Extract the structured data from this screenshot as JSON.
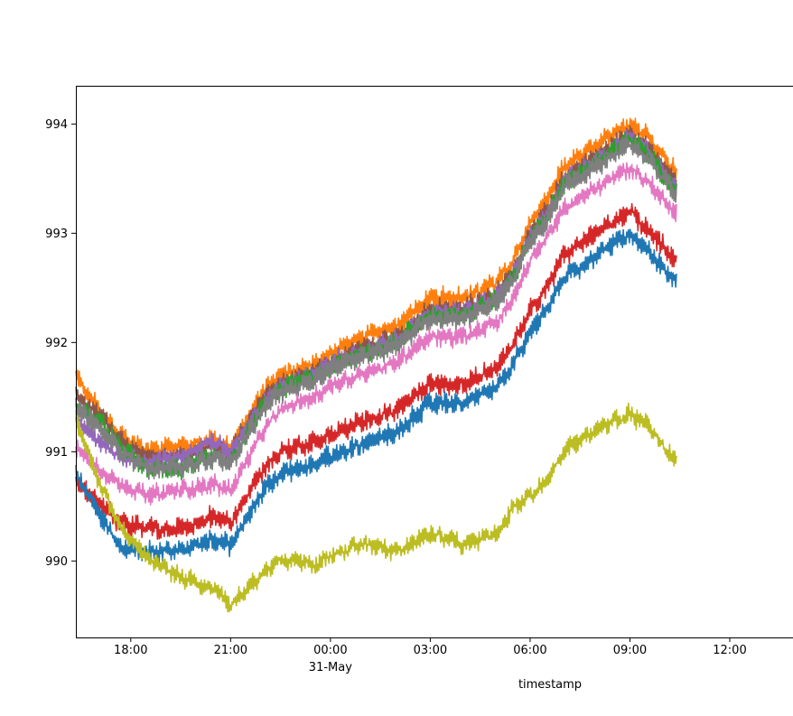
{
  "chart_data": {
    "type": "line",
    "title": "",
    "xlabel": "timestamp",
    "ylabel": "",
    "x_unit": "hours relative to 31-May 00:00",
    "xlim": [
      -7.65,
      13.9
    ],
    "ylim": [
      989.3,
      994.35
    ],
    "x_ticks": [
      {
        "value": -6,
        "label": "18:00",
        "sublabel": ""
      },
      {
        "value": -3,
        "label": "21:00",
        "sublabel": ""
      },
      {
        "value": 0,
        "label": "00:00",
        "sublabel": "31-May"
      },
      {
        "value": 3,
        "label": "03:00",
        "sublabel": ""
      },
      {
        "value": 6,
        "label": "06:00",
        "sublabel": ""
      },
      {
        "value": 9,
        "label": "09:00",
        "sublabel": ""
      },
      {
        "value": 12,
        "label": "12:00",
        "sublabel": ""
      }
    ],
    "y_ticks": [
      {
        "value": 990,
        "label": "990"
      },
      {
        "value": 991,
        "label": "991"
      },
      {
        "value": 992,
        "label": "992"
      },
      {
        "value": 993,
        "label": "993"
      },
      {
        "value": 994,
        "label": "994"
      }
    ],
    "grid": false,
    "legend": "none",
    "series": [
      {
        "color": "#ff7f0e",
        "band": 0.14,
        "x": [
          -7.65,
          -7,
          -6.3,
          -5.5,
          -4.5,
          -3.5,
          -3,
          -2,
          -1.5,
          -1,
          -0.5,
          0,
          1,
          2,
          3,
          4,
          5,
          5.5,
          6,
          6.5,
          7,
          8,
          9,
          9.5,
          10.4
        ],
        "y": [
          991.7,
          991.4,
          991.15,
          991.0,
          991.05,
          991.1,
          991.05,
          991.55,
          991.7,
          991.75,
          991.8,
          991.9,
          992.05,
          992.15,
          992.4,
          992.4,
          992.55,
          992.75,
          993.1,
          993.3,
          993.6,
          993.8,
          994.0,
          993.9,
          993.55
        ]
      },
      {
        "color": "#8c564b",
        "band": 0.14,
        "x": [
          -7.65,
          -7,
          -6.3,
          -5.5,
          -4.5,
          -3.5,
          -3,
          -2,
          -1.5,
          -1,
          -0.5,
          0,
          1,
          2,
          3,
          4,
          5,
          5.5,
          6,
          6.5,
          7,
          8,
          9,
          9.5,
          10.4
        ],
        "y": [
          991.5,
          991.35,
          991.1,
          990.95,
          990.95,
          991.05,
          991.0,
          991.5,
          991.62,
          991.68,
          991.72,
          991.82,
          991.95,
          992.05,
          992.3,
          992.3,
          992.45,
          992.65,
          993.0,
          993.2,
          993.5,
          993.7,
          993.92,
          993.8,
          993.45
        ]
      },
      {
        "color": "#9467bd",
        "band": 0.12,
        "x": [
          -7.65,
          -7,
          -6.3,
          -5.5,
          -4.5,
          -3.5,
          -3,
          -2,
          -1.5,
          -1,
          -0.5,
          0,
          1,
          2,
          3,
          4,
          5,
          5.5,
          6,
          6.5,
          7,
          8,
          9,
          9.5,
          10.4
        ],
        "y": [
          991.3,
          991.1,
          990.95,
          990.9,
          990.95,
          991.1,
          991.0,
          991.45,
          991.6,
          991.65,
          991.7,
          991.8,
          991.92,
          992.02,
          992.28,
          992.28,
          992.42,
          992.62,
          992.97,
          993.17,
          993.47,
          993.67,
          993.88,
          993.76,
          993.4
        ]
      },
      {
        "color": "#2ca02c",
        "band": 0.12,
        "x": [
          -7.65,
          -7,
          -6.3,
          -5.5,
          -4.5,
          -3.5,
          -3,
          -2,
          -1.5,
          -1,
          -0.5,
          0,
          1,
          2,
          3,
          4,
          5,
          5.5,
          6,
          6.5,
          7,
          8,
          9,
          9.5,
          10.4
        ],
        "y": [
          991.45,
          991.3,
          991.05,
          990.85,
          990.85,
          990.95,
          990.92,
          991.42,
          991.58,
          991.64,
          991.68,
          991.78,
          991.9,
          992.0,
          992.25,
          992.25,
          992.4,
          992.6,
          992.95,
          993.15,
          993.45,
          993.65,
          993.86,
          993.74,
          993.38
        ]
      },
      {
        "color": "#7f7f7f",
        "band": 0.14,
        "x": [
          -7.65,
          -7,
          -6.3,
          -5.5,
          -4.5,
          -3.5,
          -3,
          -2,
          -1.5,
          -1,
          -0.5,
          0,
          1,
          2,
          3,
          4,
          5,
          5.5,
          6,
          6.5,
          7,
          8,
          9,
          9.5,
          10.4
        ],
        "y": [
          991.4,
          991.25,
          991.0,
          990.85,
          990.85,
          990.95,
          990.9,
          991.4,
          991.55,
          991.6,
          991.65,
          991.75,
          991.88,
          991.98,
          992.22,
          992.22,
          992.38,
          992.58,
          992.92,
          993.12,
          993.42,
          993.62,
          993.82,
          993.7,
          993.35
        ]
      },
      {
        "color": "#e377c2",
        "band": 0.12,
        "x": [
          -7.65,
          -7,
          -6.3,
          -5.5,
          -4.5,
          -3.5,
          -3,
          -2,
          -1.5,
          -1,
          -0.5,
          0,
          1,
          2,
          3,
          4,
          5,
          5.5,
          6,
          6.5,
          7,
          8,
          9,
          9.5,
          10.4
        ],
        "y": [
          991.05,
          990.85,
          990.7,
          990.6,
          990.65,
          990.7,
          990.65,
          991.2,
          991.38,
          991.45,
          991.5,
          991.6,
          991.72,
          991.82,
          992.05,
          992.05,
          992.2,
          992.4,
          992.75,
          992.95,
          993.22,
          993.42,
          993.6,
          993.48,
          993.18
        ]
      },
      {
        "color": "#d62728",
        "band": 0.14,
        "x": [
          -7.65,
          -7,
          -6.3,
          -5.5,
          -4.5,
          -3.5,
          -3,
          -2,
          -1.5,
          -1,
          -0.5,
          0,
          1,
          2,
          3,
          4,
          5,
          5.5,
          6,
          6.5,
          7,
          8,
          9,
          9.5,
          10.4
        ],
        "y": [
          990.75,
          990.55,
          990.35,
          990.3,
          990.3,
          990.4,
          990.35,
          990.85,
          991.0,
          991.05,
          991.08,
          991.15,
          991.28,
          991.38,
          991.62,
          991.62,
          991.78,
          991.98,
          992.3,
          992.5,
          992.8,
          993.0,
          993.2,
          993.05,
          992.75
        ]
      },
      {
        "color": "#1f77b4",
        "band": 0.14,
        "x": [
          -7.65,
          -7,
          -6.3,
          -5.5,
          -4.5,
          -3.5,
          -3,
          -2,
          -1.5,
          -1,
          -0.5,
          0,
          1,
          2,
          3,
          4,
          5,
          5.5,
          6,
          6.5,
          7,
          8,
          9,
          9.5,
          10.4
        ],
        "y": [
          990.8,
          990.45,
          990.12,
          990.08,
          990.1,
          990.2,
          990.15,
          990.65,
          990.8,
          990.85,
          990.88,
          990.95,
          991.08,
          991.18,
          991.45,
          991.45,
          991.6,
          991.8,
          992.1,
          992.3,
          992.6,
          992.8,
          993.0,
          992.85,
          992.55
        ]
      },
      {
        "color": "#bcbd22",
        "band": 0.12,
        "x": [
          -7.65,
          -7,
          -6.3,
          -5.5,
          -4.5,
          -3.5,
          -3,
          -2,
          -1.5,
          -1,
          -0.5,
          0,
          1,
          2,
          3,
          4,
          5,
          5.5,
          6,
          6.5,
          7,
          8,
          9,
          9.5,
          10.4
        ],
        "y": [
          991.3,
          990.75,
          990.3,
          990.05,
          989.85,
          989.75,
          989.6,
          989.9,
          990.0,
          990.02,
          989.95,
          990.05,
          990.15,
          990.1,
          990.25,
          990.15,
          990.25,
          990.5,
          990.6,
          990.72,
          991.0,
          991.2,
          991.35,
          991.25,
          990.9
        ]
      }
    ]
  }
}
